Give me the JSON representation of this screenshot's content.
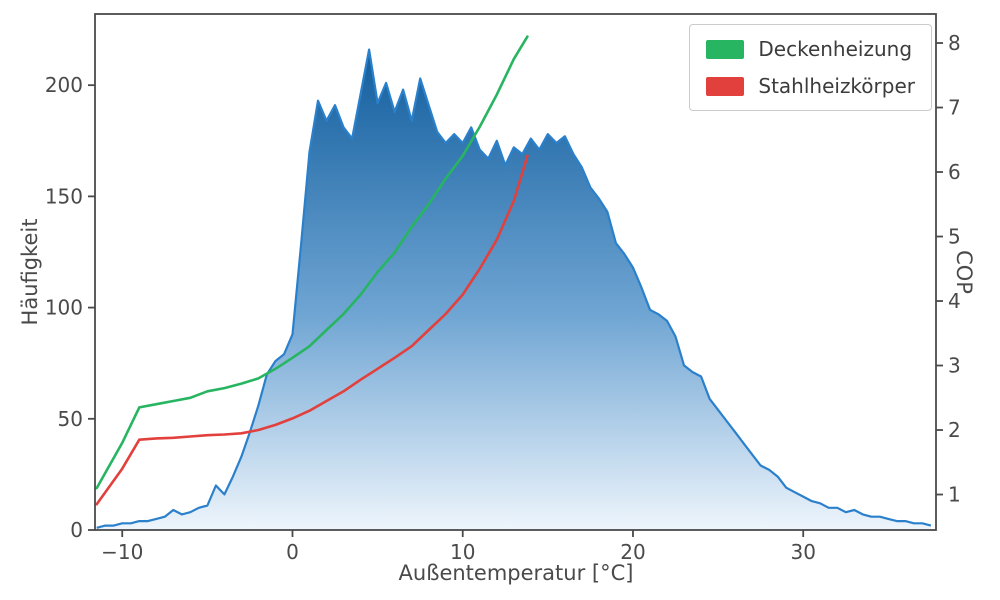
{
  "chart_data": {
    "type": "area",
    "title": "",
    "xlabel": "Außentemperatur [°C]",
    "ylabel_left": "Häufigkeit",
    "ylabel_right": "COP",
    "xlim": [
      -11.6,
      37.8
    ],
    "ylim_left": [
      0,
      232
    ],
    "ylim_right": [
      0.45,
      8.45
    ],
    "grid": false,
    "legend_position": "upper right",
    "xticks": [
      {
        "v": -10,
        "label": "−10"
      },
      {
        "v": 0,
        "label": "0"
      },
      {
        "v": 10,
        "label": "10"
      },
      {
        "v": 20,
        "label": "20"
      },
      {
        "v": 30,
        "label": "30"
      }
    ],
    "yticks_left": [
      {
        "v": 0,
        "label": "0"
      },
      {
        "v": 50,
        "label": "50"
      },
      {
        "v": 100,
        "label": "100"
      },
      {
        "v": 150,
        "label": "150"
      },
      {
        "v": 200,
        "label": "200"
      }
    ],
    "yticks_right": [
      {
        "v": 1,
        "label": "1"
      },
      {
        "v": 2,
        "label": "2"
      },
      {
        "v": 3,
        "label": "3"
      },
      {
        "v": 4,
        "label": "4"
      },
      {
        "v": 5,
        "label": "5"
      },
      {
        "v": 6,
        "label": "6"
      },
      {
        "v": 7,
        "label": "7"
      },
      {
        "v": 8,
        "label": "8"
      }
    ],
    "histogram": {
      "name": "Häufigkeit",
      "axis": "left",
      "x_start": -11.5,
      "x_step": 0.5,
      "values": [
        1,
        2,
        2,
        3,
        3,
        4,
        4,
        5,
        6,
        9,
        7,
        8,
        10,
        11,
        20,
        16,
        24,
        33,
        44,
        56,
        70,
        76,
        79,
        88,
        128,
        170,
        193,
        184,
        191,
        181,
        176,
        196,
        216,
        192,
        201,
        188,
        198,
        184,
        203,
        191,
        179,
        174,
        178,
        174,
        181,
        171,
        167,
        175,
        164,
        172,
        169,
        176,
        171,
        178,
        174,
        177,
        169,
        163,
        154,
        149,
        143,
        129,
        124,
        118,
        109,
        99,
        97,
        94,
        87,
        74,
        71,
        69,
        59,
        54,
        49,
        44,
        39,
        34,
        29,
        27,
        24,
        19,
        17,
        15,
        13,
        12,
        10,
        10,
        8,
        9,
        7,
        6,
        6,
        5,
        4,
        4,
        3,
        3,
        2
      ]
    },
    "series": [
      {
        "name": "Deckenheizung",
        "axis": "right",
        "color": "#27b561",
        "x": [
          -11.5,
          -10,
          -9,
          -8,
          -7,
          -6,
          -5,
          -4,
          -3,
          -2,
          -1,
          0,
          1,
          2,
          3,
          4,
          5,
          6,
          7,
          8,
          9,
          10,
          11,
          12,
          13,
          13.8
        ],
        "y": [
          1.1,
          1.8,
          2.35,
          2.4,
          2.45,
          2.5,
          2.6,
          2.65,
          2.72,
          2.8,
          2.95,
          3.12,
          3.3,
          3.55,
          3.8,
          4.1,
          4.45,
          4.75,
          5.15,
          5.5,
          5.9,
          6.25,
          6.7,
          7.2,
          7.75,
          8.1
        ]
      },
      {
        "name": "Stahlheizkörper",
        "axis": "right",
        "color": "#e2403c",
        "x": [
          -11.5,
          -10,
          -9,
          -8,
          -7,
          -6,
          -5,
          -4,
          -3,
          -2,
          -1,
          0,
          1,
          2,
          3,
          4,
          5,
          6,
          7,
          8,
          9,
          10,
          11,
          12,
          13,
          13.8
        ],
        "y": [
          0.85,
          1.4,
          1.85,
          1.87,
          1.88,
          1.9,
          1.92,
          1.93,
          1.95,
          2.0,
          2.08,
          2.18,
          2.3,
          2.45,
          2.6,
          2.78,
          2.95,
          3.12,
          3.3,
          3.55,
          3.8,
          4.1,
          4.5,
          4.95,
          5.55,
          6.25
        ]
      }
    ],
    "legend": {
      "entries": [
        {
          "label": "Deckenheizung"
        },
        {
          "label": "Stahlheizkörper"
        }
      ]
    },
    "colors": {
      "histogram_line": "#2b80cc",
      "axis": "#4a4a4a",
      "text": "#4a4a4a",
      "area_gradient": [
        {
          "offset": 0,
          "color": "#125e9e"
        },
        {
          "offset": 0.55,
          "color": "#6fa5d3"
        },
        {
          "offset": 1,
          "color": "#eef5fc"
        }
      ]
    }
  }
}
